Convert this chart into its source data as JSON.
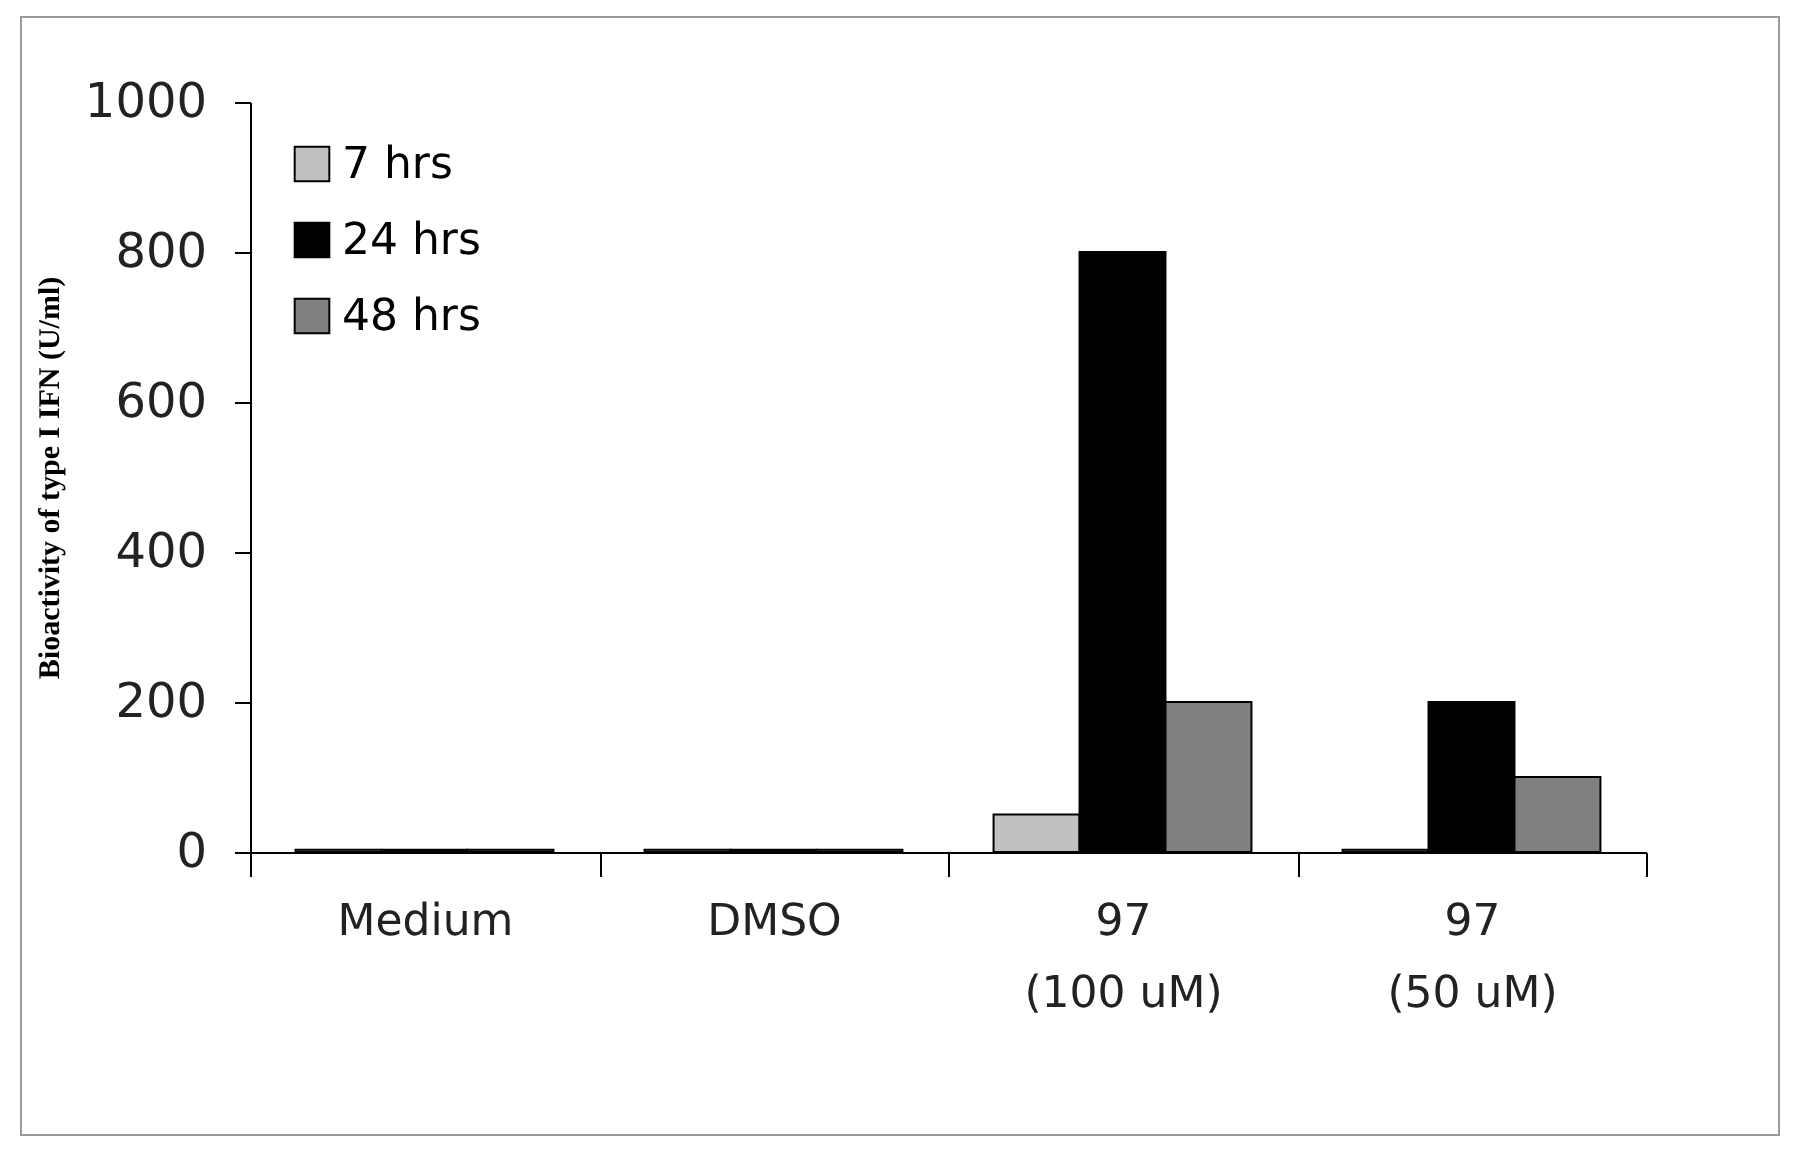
{
  "chart_data": {
    "type": "bar",
    "ylabel": "Bioactivity of type I IFN (U/ml)",
    "categories": [
      "Medium",
      "DMSO",
      "97\n(100 uM)",
      "97\n(50 uM)"
    ],
    "series": [
      {
        "name": "7 hrs",
        "color": "#c0c0c0",
        "values": [
          3,
          3,
          50,
          3
        ]
      },
      {
        "name": "24 hrs",
        "color": "#000000",
        "values": [
          3,
          3,
          800,
          200
        ]
      },
      {
        "name": "48 hrs",
        "color": "#808080",
        "values": [
          3,
          3,
          200,
          100
        ]
      }
    ],
    "ylim": [
      0,
      1000
    ],
    "yticks": [
      0,
      200,
      400,
      600,
      800,
      {
        "value": 1000,
        "label": "1000"
      }
    ],
    "grid": false,
    "legend": "top left"
  }
}
